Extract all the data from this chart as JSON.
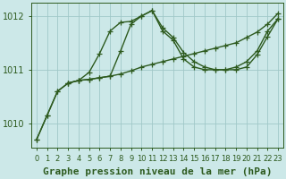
{
  "xlabel": "Graphe pression niveau de la mer (hPa)",
  "bg_color": "#cce8e8",
  "line_color": "#2d5a1e",
  "grid_color": "#a0c8c8",
  "ylim": [
    1009.55,
    1012.25
  ],
  "xlim": [
    -0.5,
    23.5
  ],
  "yticks": [
    1010,
    1011,
    1012
  ],
  "xticks": [
    0,
    1,
    2,
    3,
    4,
    5,
    6,
    7,
    8,
    9,
    10,
    11,
    12,
    13,
    14,
    15,
    16,
    17,
    18,
    19,
    20,
    21,
    22,
    23
  ],
  "line1_x": [
    0,
    1,
    2,
    3,
    4,
    5,
    6,
    7,
    8,
    9,
    10,
    11,
    12,
    13,
    14,
    15,
    16,
    17,
    18,
    19,
    20,
    21,
    22,
    23
  ],
  "line1_y": [
    1009.7,
    1010.15,
    1010.6,
    1010.75,
    1010.8,
    1010.82,
    1010.85,
    1010.88,
    1010.92,
    1010.98,
    1011.05,
    1011.1,
    1011.15,
    1011.2,
    1011.25,
    1011.3,
    1011.35,
    1011.4,
    1011.45,
    1011.5,
    1011.6,
    1011.7,
    1011.85,
    1012.05
  ],
  "line2_x": [
    0,
    1,
    2,
    3,
    4,
    5,
    6,
    7,
    8,
    9,
    10,
    11,
    12,
    13,
    14,
    15,
    16,
    17,
    18,
    19,
    20,
    21,
    22,
    23
  ],
  "line2_y": [
    1009.7,
    1010.15,
    1010.6,
    1010.75,
    1010.8,
    1010.82,
    1010.85,
    1010.88,
    1011.35,
    1011.85,
    1012.0,
    1012.1,
    1011.72,
    1011.55,
    1011.2,
    1011.05,
    1011.0,
    1011.0,
    1011.0,
    1011.05,
    1011.15,
    1011.35,
    1011.72,
    1011.95
  ],
  "line3_x": [
    3,
    4,
    5,
    6,
    7,
    8,
    9,
    10,
    11,
    12,
    13,
    14,
    15,
    16,
    17,
    18,
    19,
    20,
    21,
    22,
    23
  ],
  "line3_y": [
    1010.75,
    1010.8,
    1010.95,
    1011.3,
    1011.72,
    1011.88,
    1011.9,
    1012.0,
    1012.1,
    1011.78,
    1011.6,
    1011.32,
    1011.15,
    1011.05,
    1011.0,
    1011.0,
    1011.0,
    1011.05,
    1011.28,
    1011.62,
    1011.95
  ],
  "marker": "+",
  "markersize": 4,
  "linewidth": 1.0,
  "xlabel_fontsize": 8,
  "tick_fontsize": 7
}
